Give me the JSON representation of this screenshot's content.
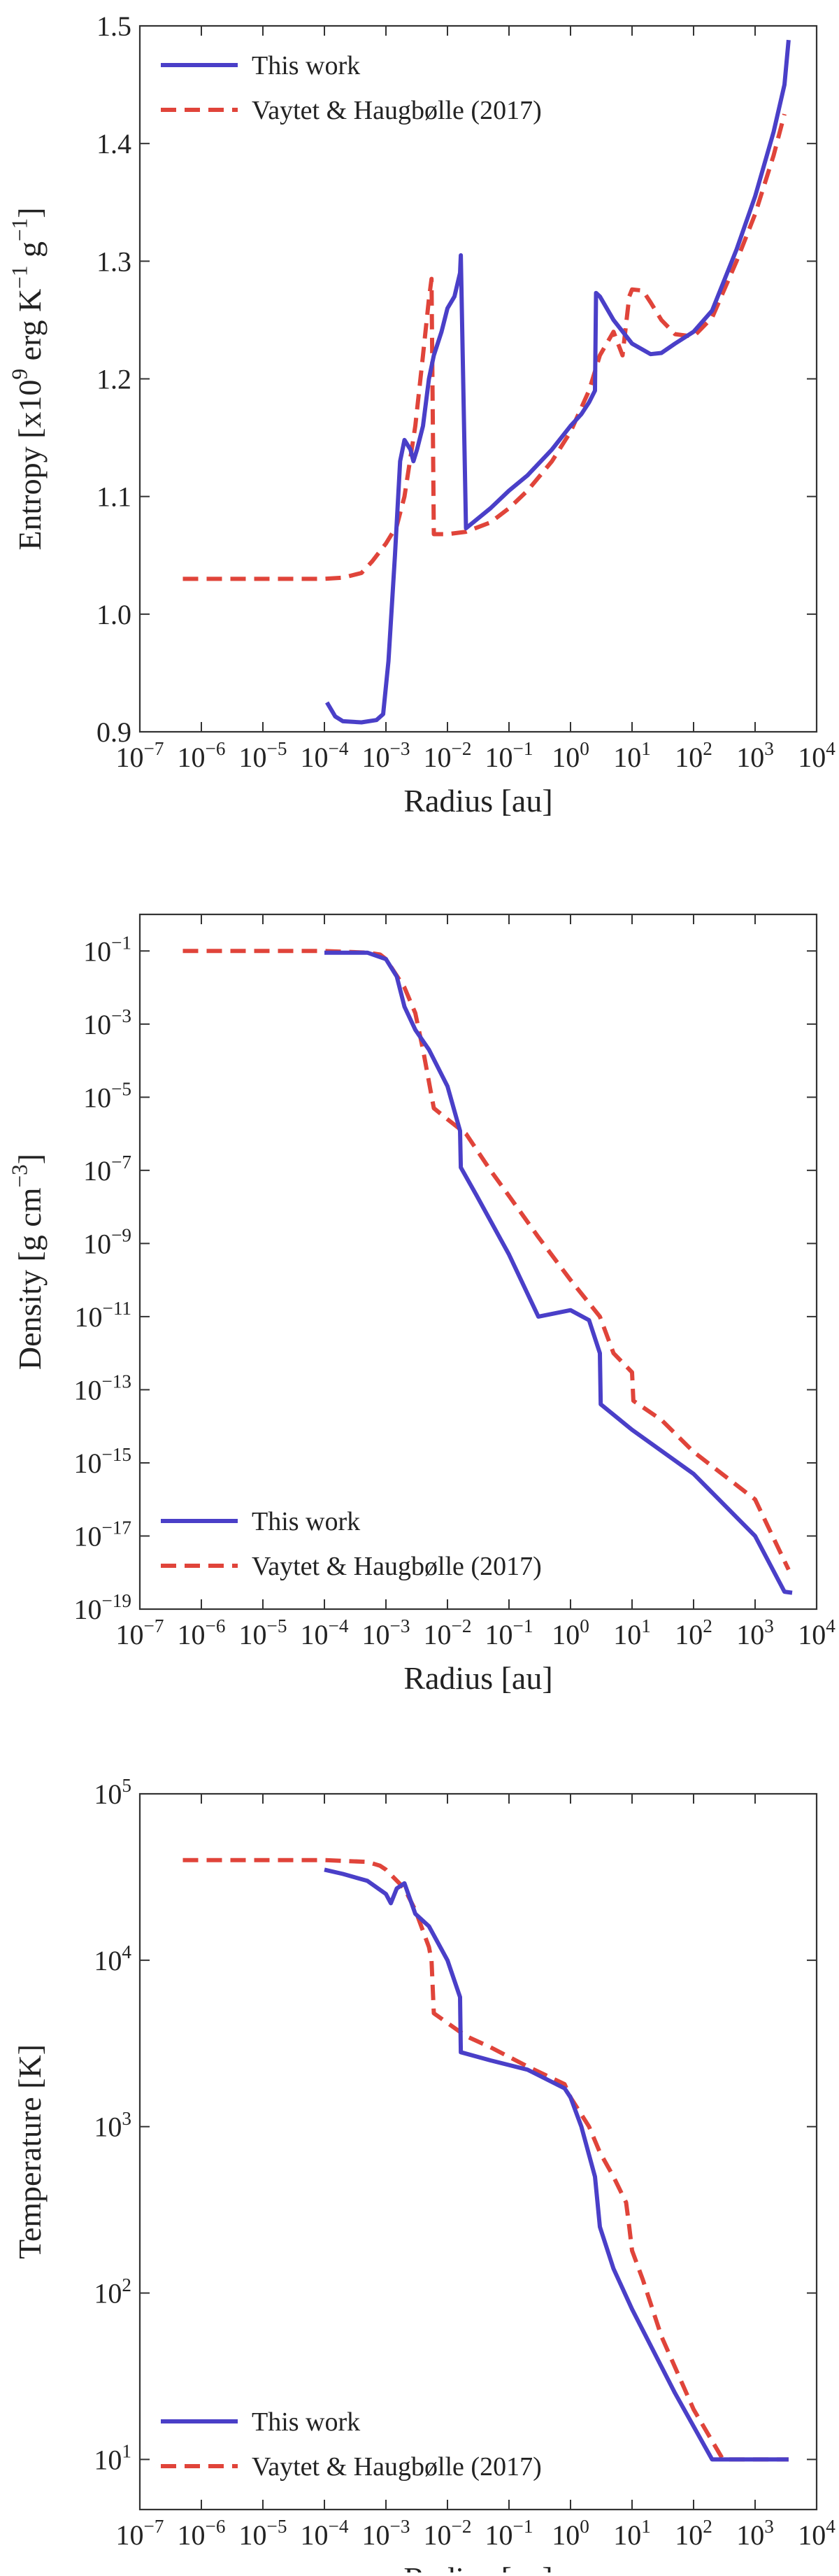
{
  "chart_data": [
    {
      "type": "line",
      "xscale": "log",
      "yscale": "linear",
      "xlabel": "Radius [au]",
      "ylabel": "Entropy [x10^9 erg K^-1 g^-1]",
      "xlim": [
        1e-07,
        10000
      ],
      "ylim": [
        0.9,
        1.5
      ],
      "x_ticks": [
        "10^-7",
        "10^-6",
        "10^-5",
        "10^-4",
        "10^-3",
        "10^-2",
        "10^-1",
        "10^0",
        "10^1",
        "10^2",
        "10^3",
        "10^4"
      ],
      "y_ticks": [
        "0.9",
        "1.0",
        "1.1",
        "1.2",
        "1.3",
        "1.4",
        "1.5"
      ],
      "y_tick_values": [
        0.9,
        1.0,
        1.1,
        1.2,
        1.3,
        1.4,
        1.5
      ],
      "legend": [
        "This work",
        "Vaytet & Haugbølle (2017)"
      ],
      "series": [
        {
          "name": "This work",
          "color": "#4a3fc8",
          "style": "solid",
          "x": [
            0.00011,
            0.00015,
            0.0002,
            0.0004,
            0.0007,
            0.0009,
            0.0011,
            0.0014,
            0.0017,
            0.002,
            0.0025,
            0.0028,
            0.0032,
            0.004,
            0.005,
            0.006,
            0.008,
            0.01,
            0.013,
            0.016,
            0.0165,
            0.02,
            0.05,
            0.1,
            0.2,
            0.5,
            1.0,
            1.5,
            2.0,
            2.5,
            2.6,
            3,
            5,
            10,
            20,
            30,
            50,
            100,
            200,
            500,
            1000,
            2000,
            3000,
            3500
          ],
          "y": [
            0.925,
            0.913,
            0.909,
            0.908,
            0.91,
            0.915,
            0.96,
            1.05,
            1.13,
            1.148,
            1.14,
            1.13,
            1.14,
            1.16,
            1.2,
            1.22,
            1.24,
            1.26,
            1.27,
            1.29,
            1.305,
            1.073,
            1.09,
            1.105,
            1.118,
            1.14,
            1.16,
            1.17,
            1.18,
            1.19,
            1.273,
            1.27,
            1.25,
            1.23,
            1.221,
            1.222,
            1.23,
            1.24,
            1.258,
            1.31,
            1.355,
            1.41,
            1.45,
            1.488
          ]
        },
        {
          "name": "Vaytet & Haugbølle (2017)",
          "color": "#e0443a",
          "style": "dashed",
          "x": [
            5e-07,
            1e-06,
            1e-05,
            0.0001,
            0.0002,
            0.0004,
            0.0006,
            0.001,
            0.0015,
            0.002,
            0.003,
            0.004,
            0.005,
            0.0055,
            0.006,
            0.01,
            0.02,
            0.05,
            0.1,
            0.2,
            0.5,
            1,
            2,
            3,
            5,
            7,
            9,
            10,
            15,
            20,
            30,
            50,
            100,
            200,
            500,
            1000,
            2000,
            3000
          ],
          "y": [
            1.03,
            1.03,
            1.03,
            1.03,
            1.031,
            1.035,
            1.045,
            1.06,
            1.075,
            1.1,
            1.16,
            1.22,
            1.268,
            1.285,
            1.068,
            1.068,
            1.07,
            1.078,
            1.09,
            1.105,
            1.13,
            1.155,
            1.19,
            1.22,
            1.24,
            1.22,
            1.27,
            1.276,
            1.275,
            1.265,
            1.25,
            1.238,
            1.236,
            1.252,
            1.3,
            1.34,
            1.39,
            1.425
          ]
        }
      ]
    },
    {
      "type": "line",
      "xscale": "log",
      "yscale": "log",
      "xlabel": "Radius [au]",
      "ylabel": "Density [g cm^-3]",
      "xlim": [
        1e-07,
        10000
      ],
      "ylim": [
        1e-19,
        1
      ],
      "x_ticks": [
        "10^-7",
        "10^-6",
        "10^-5",
        "10^-4",
        "10^-3",
        "10^-2",
        "10^-1",
        "10^0",
        "10^1",
        "10^2",
        "10^3",
        "10^4"
      ],
      "y_ticks": [
        "10^-1",
        "10^-3",
        "10^-5",
        "10^-7",
        "10^-9",
        "10^-11",
        "10^-13",
        "10^-15",
        "10^-17",
        "10^-19"
      ],
      "y_tick_values": [
        0.1,
        0.001,
        1e-05,
        1e-07,
        1e-09,
        1e-11,
        1e-13,
        1e-15,
        1e-17,
        1e-19
      ],
      "legend": [
        "This work",
        "Vaytet & Haugbølle (2017)"
      ],
      "series": [
        {
          "name": "This work",
          "color": "#4a3fc8",
          "style": "solid",
          "x": [
            0.0001,
            0.0005,
            0.001,
            0.0015,
            0.002,
            0.003,
            0.005,
            0.01,
            0.016,
            0.0165,
            0.03,
            0.1,
            0.3,
            1,
            2,
            3,
            3.1,
            10,
            100,
            1000,
            3000,
            4000
          ],
          "y": [
            0.09,
            0.09,
            0.06,
            0.02,
            0.003,
            0.0007,
            0.0002,
            2e-05,
            1.2e-06,
            1.2e-07,
            2e-08,
            5e-10,
            1e-11,
            1.5e-11,
            8e-12,
            1e-12,
            4e-14,
            8e-15,
            5e-16,
            1e-17,
            3e-19,
            2.8e-19
          ]
        },
        {
          "name": "Vaytet & Haugbølle (2017)",
          "color": "#e0443a",
          "style": "dashed",
          "x": [
            5e-07,
            1e-06,
            1e-05,
            0.0001,
            0.0005,
            0.0008,
            0.001,
            0.002,
            0.003,
            0.004,
            0.006,
            0.01,
            0.02,
            0.05,
            0.1,
            0.3,
            1,
            3,
            5,
            10,
            10.5,
            30,
            100,
            1000,
            3500
          ],
          "y": [
            0.1,
            0.1,
            0.1,
            0.1,
            0.09,
            0.08,
            0.06,
            0.01,
            0.002,
            0.0002,
            5e-06,
            2.5e-06,
            1e-06,
            1e-07,
            2e-08,
            1.5e-09,
            1e-10,
            1e-11,
            1e-12,
            3e-13,
            5e-14,
            1.5e-14,
            2e-15,
            1e-16,
            1.2e-18
          ]
        }
      ]
    },
    {
      "type": "line",
      "xscale": "log",
      "yscale": "log",
      "xlabel": "Radius [au]",
      "ylabel": "Temperature [K]",
      "xlim": [
        1e-07,
        10000
      ],
      "ylim": [
        5,
        100000
      ],
      "x_ticks": [
        "10^-7",
        "10^-6",
        "10^-5",
        "10^-4",
        "10^-3",
        "10^-2",
        "10^-1",
        "10^0",
        "10^1",
        "10^2",
        "10^3",
        "10^4"
      ],
      "y_ticks": [
        "10^5",
        "10^4",
        "10^3",
        "10^2",
        "10^1"
      ],
      "y_tick_values": [
        100000,
        10000,
        1000,
        100,
        10
      ],
      "legend": [
        "This work",
        "Vaytet & Haugbølle (2017)"
      ],
      "series": [
        {
          "name": "This work",
          "color": "#4a3fc8",
          "style": "solid",
          "x": [
            0.0001,
            0.0002,
            0.0005,
            0.001,
            0.0012,
            0.0015,
            0.002,
            0.003,
            0.005,
            0.01,
            0.016,
            0.0165,
            0.05,
            0.2,
            0.8,
            1.0,
            1.5,
            2.5,
            3,
            5,
            10,
            50,
            200,
            300,
            1000,
            3500
          ],
          "y": [
            35000,
            33000,
            30000,
            25000,
            22000,
            27000,
            29000,
            19000,
            16000,
            10000,
            6000,
            2800,
            2500,
            2200,
            1700,
            1500,
            1000,
            500,
            250,
            140,
            80,
            25,
            10,
            10,
            10,
            10
          ]
        },
        {
          "name": "Vaytet & Haugbølle (2017)",
          "color": "#e0443a",
          "style": "dashed",
          "x": [
            5e-07,
            1e-06,
            1e-05,
            0.0001,
            0.0005,
            0.0008,
            0.001,
            0.002,
            0.003,
            0.005,
            0.0055,
            0.006,
            0.01,
            0.02,
            0.05,
            0.2,
            0.8,
            1,
            2,
            3,
            5,
            8,
            9,
            10,
            15,
            30,
            100,
            300,
            1000,
            3500
          ],
          "y": [
            40000,
            40000,
            40000,
            40000,
            39000,
            37000,
            35000,
            27000,
            20000,
            12000,
            10000,
            4800,
            4200,
            3500,
            3000,
            2300,
            1800,
            1500,
            1000,
            700,
            500,
            350,
            250,
            180,
            120,
            55,
            20,
            10,
            10,
            10
          ]
        }
      ]
    }
  ]
}
